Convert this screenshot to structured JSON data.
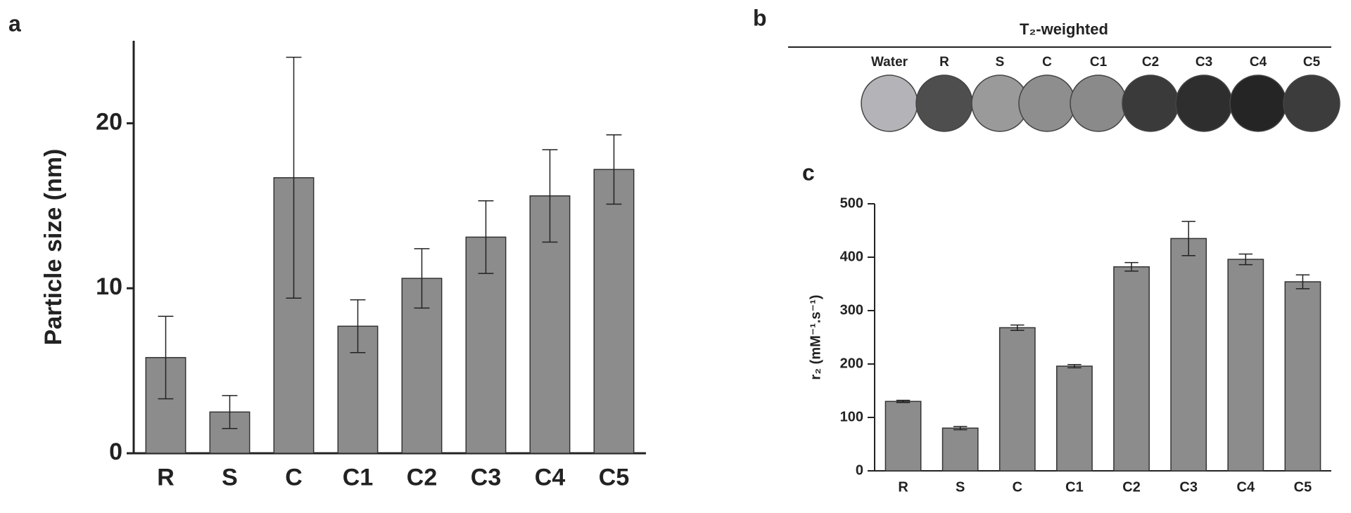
{
  "chart_data": [
    {
      "type": "bar",
      "panel": "a",
      "y_label": "Particle size (nm)",
      "categories": [
        "R",
        "S",
        "C",
        "C1",
        "C2",
        "C3",
        "C4",
        "C5"
      ],
      "values": [
        5.8,
        2.5,
        16.7,
        7.7,
        10.6,
        13.1,
        15.6,
        17.2
      ],
      "errors": [
        2.5,
        1.0,
        7.3,
        1.6,
        1.8,
        2.2,
        2.8,
        2.1
      ],
      "color": "#8c8c8c",
      "ylim": [
        0,
        25
      ],
      "yticks": [
        0,
        10,
        20
      ]
    },
    {
      "type": "image-grid",
      "panel": "b",
      "title": "T₂-weighted",
      "labels": [
        "Water",
        "R",
        "S",
        "C",
        "C1",
        "C2",
        "C3",
        "C4",
        "C5"
      ],
      "colors": [
        "#b4b4b8",
        "#4e4e4e",
        "#9a9a9a",
        "#8e8e8e",
        "#8a8a8a",
        "#3a3a3a",
        "#2e2e2e",
        "#252525",
        "#3c3c3c"
      ]
    },
    {
      "type": "bar",
      "panel": "c",
      "y_label": "r₂ (mM⁻¹.s⁻¹)",
      "categories": [
        "R",
        "S",
        "C",
        "C1",
        "C2",
        "C3",
        "C4",
        "C5"
      ],
      "values": [
        130,
        80,
        268,
        196,
        382,
        435,
        396,
        354
      ],
      "errors": [
        2,
        3,
        5,
        3,
        8,
        32,
        10,
        13
      ],
      "color": "#8c8c8c",
      "ylim": [
        0,
        500
      ],
      "yticks": [
        0,
        100,
        200,
        300,
        400,
        500
      ]
    }
  ]
}
